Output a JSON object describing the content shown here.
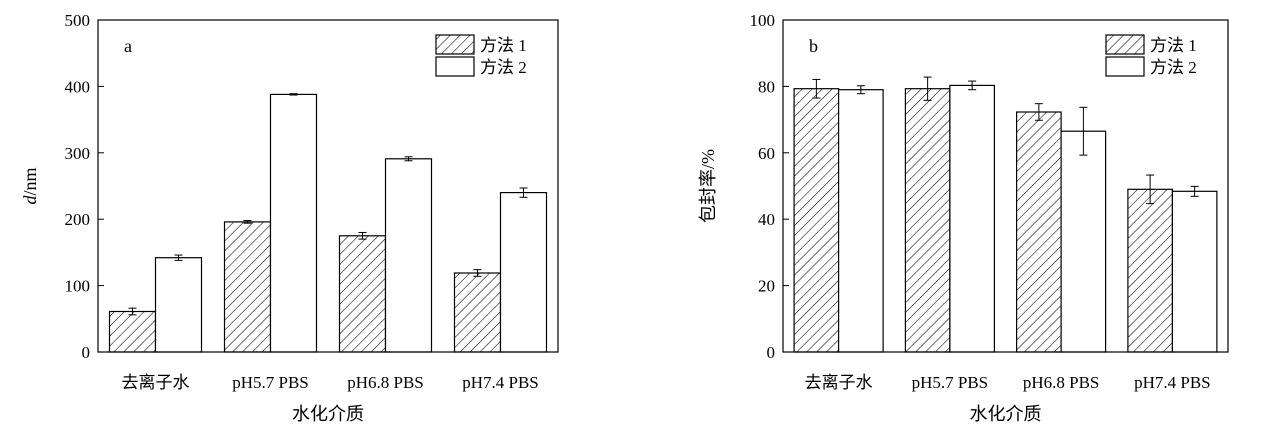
{
  "chart_data": [
    {
      "type": "bar",
      "panel_label": "a",
      "categories": [
        "去离子水",
        "pH5.7 PBS",
        "pH6.8 PBS",
        "pH7.4 PBS"
      ],
      "series": [
        {
          "name": "方法 1",
          "values": [
            61,
            196,
            175,
            119
          ],
          "errors": [
            5,
            2,
            5,
            5
          ],
          "fill": "hatched"
        },
        {
          "name": "方法 2",
          "values": [
            142,
            388,
            291,
            240
          ],
          "errors": [
            4,
            1,
            3,
            7
          ],
          "fill": "white"
        }
      ],
      "xlabel": "水化介质",
      "ylabel_italic": "d",
      "ylabel_rest": "/nm",
      "ylim": [
        0,
        500
      ],
      "yticks": [
        "0",
        "100",
        "200",
        "300",
        "400",
        "500"
      ],
      "legend_position": "top-right",
      "grid": false
    },
    {
      "type": "bar",
      "panel_label": "b",
      "categories": [
        "去离子水",
        "pH5.7 PBS",
        "pH6.8 PBS",
        "pH7.4 PBS"
      ],
      "series": [
        {
          "name": "方法 1",
          "values": [
            79.3,
            79.3,
            72.3,
            49.0
          ],
          "errors": [
            2.8,
            3.5,
            2.5,
            4.3
          ],
          "fill": "hatched"
        },
        {
          "name": "方法 2",
          "values": [
            79.0,
            80.3,
            66.5,
            48.4
          ],
          "errors": [
            1.2,
            1.3,
            7.2,
            1.5
          ],
          "fill": "white"
        }
      ],
      "xlabel": "水化介质",
      "ylabel": "包封率/%",
      "ylim": [
        0,
        100
      ],
      "yticks": [
        "0",
        "20",
        "40",
        "60",
        "80",
        "100"
      ],
      "legend_position": "top-right",
      "grid": false
    }
  ]
}
